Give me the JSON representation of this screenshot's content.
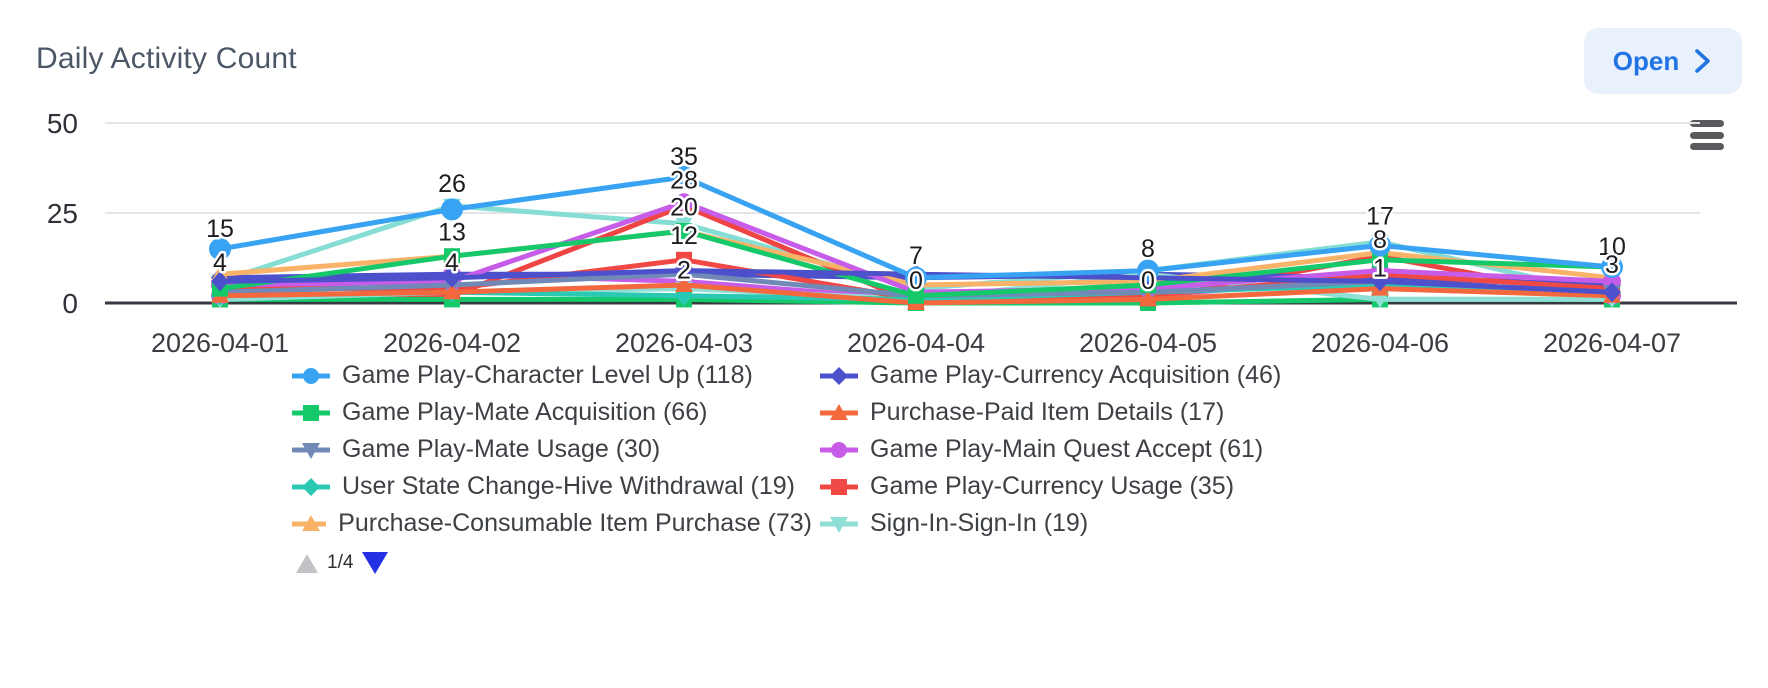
{
  "header": {
    "title": "Daily Activity Count",
    "open_button": {
      "label": "Open",
      "icon": "chevron-right-icon",
      "text_color": "#2273e3",
      "bg_color": "#e9f1fd"
    }
  },
  "toolbar": {
    "menu_icon": "hamburger-menu-icon"
  },
  "chart_data": {
    "type": "line",
    "title": "Daily Activity Count",
    "categories": [
      "2026-04-01",
      "2026-04-02",
      "2026-04-03",
      "2026-04-04",
      "2026-04-05",
      "2026-04-06",
      "2026-04-07"
    ],
    "xlabel": "",
    "ylabel": "",
    "ylim": [
      0,
      50
    ],
    "y_ticks": [
      0,
      25,
      50
    ],
    "grid": true,
    "legend_position": "bottom",
    "legend_page": "1/4",
    "series": [
      {
        "name": "Game Play-Character Level Up (118)",
        "total": 118,
        "color": "#38a3f2",
        "marker": "circle",
        "values": [
          15,
          26,
          35,
          7,
          9,
          16,
          10
        ]
      },
      {
        "name": "Game Play-Currency Acquisition (46)",
        "total": 46,
        "color": "#4d50cb",
        "marker": "diamond",
        "values": [
          6,
          7,
          9,
          8,
          7,
          6,
          3
        ]
      },
      {
        "name": "Game Play-Mate Acquisition (66)",
        "total": 66,
        "color": "#15c86a",
        "marker": "square",
        "values": [
          4,
          13,
          20,
          2,
          5,
          12,
          10
        ]
      },
      {
        "name": "Purchase-Paid Item Details (17)",
        "total": 17,
        "color": "#f3683c",
        "marker": "triangle-up",
        "values": [
          2,
          3,
          5,
          0,
          1,
          4,
          2
        ]
      },
      {
        "name": "Game Play-Mate Usage (30)",
        "total": 30,
        "color": "#7189b7",
        "marker": "triangle-down",
        "values": [
          3,
          5,
          8,
          2,
          3,
          6,
          3
        ]
      },
      {
        "name": "Game Play-Main Quest Accept (61)",
        "total": 61,
        "color": "#c75ce8",
        "marker": "circle",
        "values": [
          5,
          6,
          28,
          3,
          4,
          9,
          6
        ]
      },
      {
        "name": "User State Change-Hive Withdrawal (19)",
        "total": 19,
        "color": "#2bc8b3",
        "marker": "diamond",
        "values": [
          2,
          3,
          2,
          1,
          3,
          5,
          3
        ]
      },
      {
        "name": "Game Play-Currency Usage (35)",
        "total": 35,
        "color": "#f04845",
        "marker": "square",
        "values": [
          4,
          4,
          12,
          1,
          2,
          8,
          4
        ]
      },
      {
        "name": "Purchase-Consumable Item Purchase (73)",
        "total": 73,
        "color": "#f9b369",
        "marker": "triangle-up",
        "values": [
          8,
          13,
          20,
          5,
          6,
          14,
          7
        ]
      },
      {
        "name": "Sign-In-Sign-In (19)",
        "total": 19,
        "color": "#8fdfd6",
        "marker": "triangle-down",
        "values": [
          1,
          3,
          4,
          1,
          8,
          1,
          1
        ]
      }
    ],
    "unlabeled_series": [
      {
        "color": "#85ddd3",
        "marker": "triangle-down",
        "values": [
          6,
          27,
          22,
          4,
          9,
          17,
          2
        ]
      },
      {
        "color": "#ef4444",
        "marker": "square",
        "values": [
          1,
          2,
          27,
          0,
          1,
          13,
          1
        ]
      },
      {
        "color": "#15c86a",
        "marker": "square",
        "values": [
          1,
          1,
          1,
          0,
          0,
          1,
          1
        ]
      },
      {
        "color": "#c75ce8",
        "marker": "circle",
        "values": [
          2,
          8,
          6,
          1,
          2,
          7,
          2
        ]
      },
      {
        "color": "#4d50cb",
        "marker": "diamond",
        "values": [
          7,
          8,
          8,
          7,
          8,
          7,
          5
        ]
      }
    ],
    "point_labels": [
      {
        "x": 0,
        "text": "15",
        "value": 15
      },
      {
        "x": 0,
        "text": "4",
        "value": 5.5
      },
      {
        "x": 1,
        "text": "26",
        "value": 27.5
      },
      {
        "x": 1,
        "text": "13",
        "value": 14
      },
      {
        "x": 1,
        "text": "4",
        "value": 5.5
      },
      {
        "x": 2,
        "text": "35",
        "value": 35
      },
      {
        "x": 2,
        "text": "28",
        "value": 28.5
      },
      {
        "x": 2,
        "text": "20",
        "value": 21
      },
      {
        "x": 2,
        "text": "12",
        "value": 13
      },
      {
        "x": 2,
        "text": "2",
        "value": 3.5
      },
      {
        "x": 3,
        "text": "7",
        "value": 7.5
      },
      {
        "x": 3,
        "text": "0",
        "value": 0.5
      },
      {
        "x": 4,
        "text": "8",
        "value": 9.5
      },
      {
        "x": 4,
        "text": "0",
        "value": 0.5
      },
      {
        "x": 5,
        "text": "17",
        "value": 18.5
      },
      {
        "x": 5,
        "text": "8",
        "value": 12
      },
      {
        "x": 5,
        "text": "1",
        "value": 4
      },
      {
        "x": 6,
        "text": "10",
        "value": 10
      },
      {
        "x": 6,
        "text": "3",
        "value": 5
      }
    ]
  },
  "legend_pager": {
    "page_label": "1/4",
    "up_icon": "page-up-triangle-icon",
    "down_icon": "page-down-triangle-icon"
  }
}
